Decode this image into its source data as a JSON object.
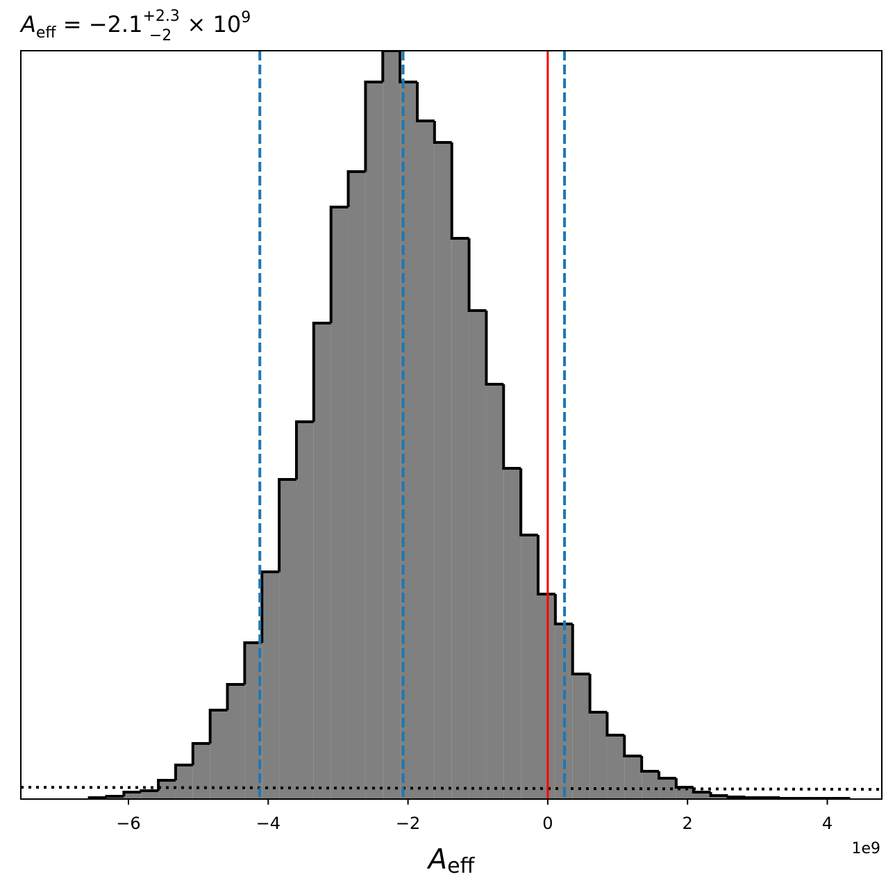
{
  "chart_data": {
    "type": "histogram",
    "title": {
      "symbol": "A",
      "subscript": "eff",
      "value": " = −2.1",
      "upper": "+2.3",
      "lower": "−2",
      "times": " × 10",
      "exponent": "9"
    },
    "x_label": {
      "symbol": "A",
      "subscript": "eff"
    },
    "x_offset_label": "1e9",
    "bins": [
      -6.56,
      -6.313,
      -6.066,
      -5.819,
      -5.572,
      -5.325,
      -5.078,
      -4.831,
      -4.584,
      -4.337,
      -4.09,
      -3.843,
      -3.596,
      -3.349,
      -3.102,
      -2.855,
      -2.608,
      -2.361,
      -2.114,
      -1.867,
      -1.62,
      -1.373,
      -1.126,
      -0.879,
      -0.632,
      -0.385,
      -0.138,
      0.109,
      0.356,
      0.603,
      0.85,
      1.097,
      1.344,
      1.591,
      1.838,
      2.085,
      2.332,
      2.579,
      2.826,
      3.073,
      3.32,
      3.567,
      3.814,
      4.061,
      4.308
    ],
    "values": [
      2,
      4,
      10,
      12,
      27,
      49,
      80,
      128,
      165,
      225,
      327,
      460,
      543,
      685,
      852,
      903,
      1032,
      1077,
      1032,
      976,
      945,
      807,
      703,
      597,
      476,
      380,
      295,
      252,
      180,
      125,
      92,
      62,
      40,
      30,
      17,
      10,
      5,
      3,
      2,
      2,
      1,
      1,
      1,
      1
    ],
    "color": "#808080",
    "edge_color": "#000000",
    "xlim": [
      -7.54,
      4.78
    ],
    "ylim": [
      0,
      1077
    ],
    "xticks": [
      {
        "value": -6,
        "label": "−6"
      },
      {
        "value": -4,
        "label": "−4"
      },
      {
        "value": -2,
        "label": "−2"
      },
      0,
      2,
      4
    ],
    "quantile_lines": {
      "values": [
        -4.12,
        -2.07,
        0.24
      ],
      "color": "#1f77b4"
    },
    "reference_line": {
      "value": 0,
      "color": "#ff0000"
    },
    "prior_line": {
      "x": [
        -7.54,
        4.78
      ],
      "y": [
        17,
        14
      ],
      "color": "#000000"
    }
  }
}
